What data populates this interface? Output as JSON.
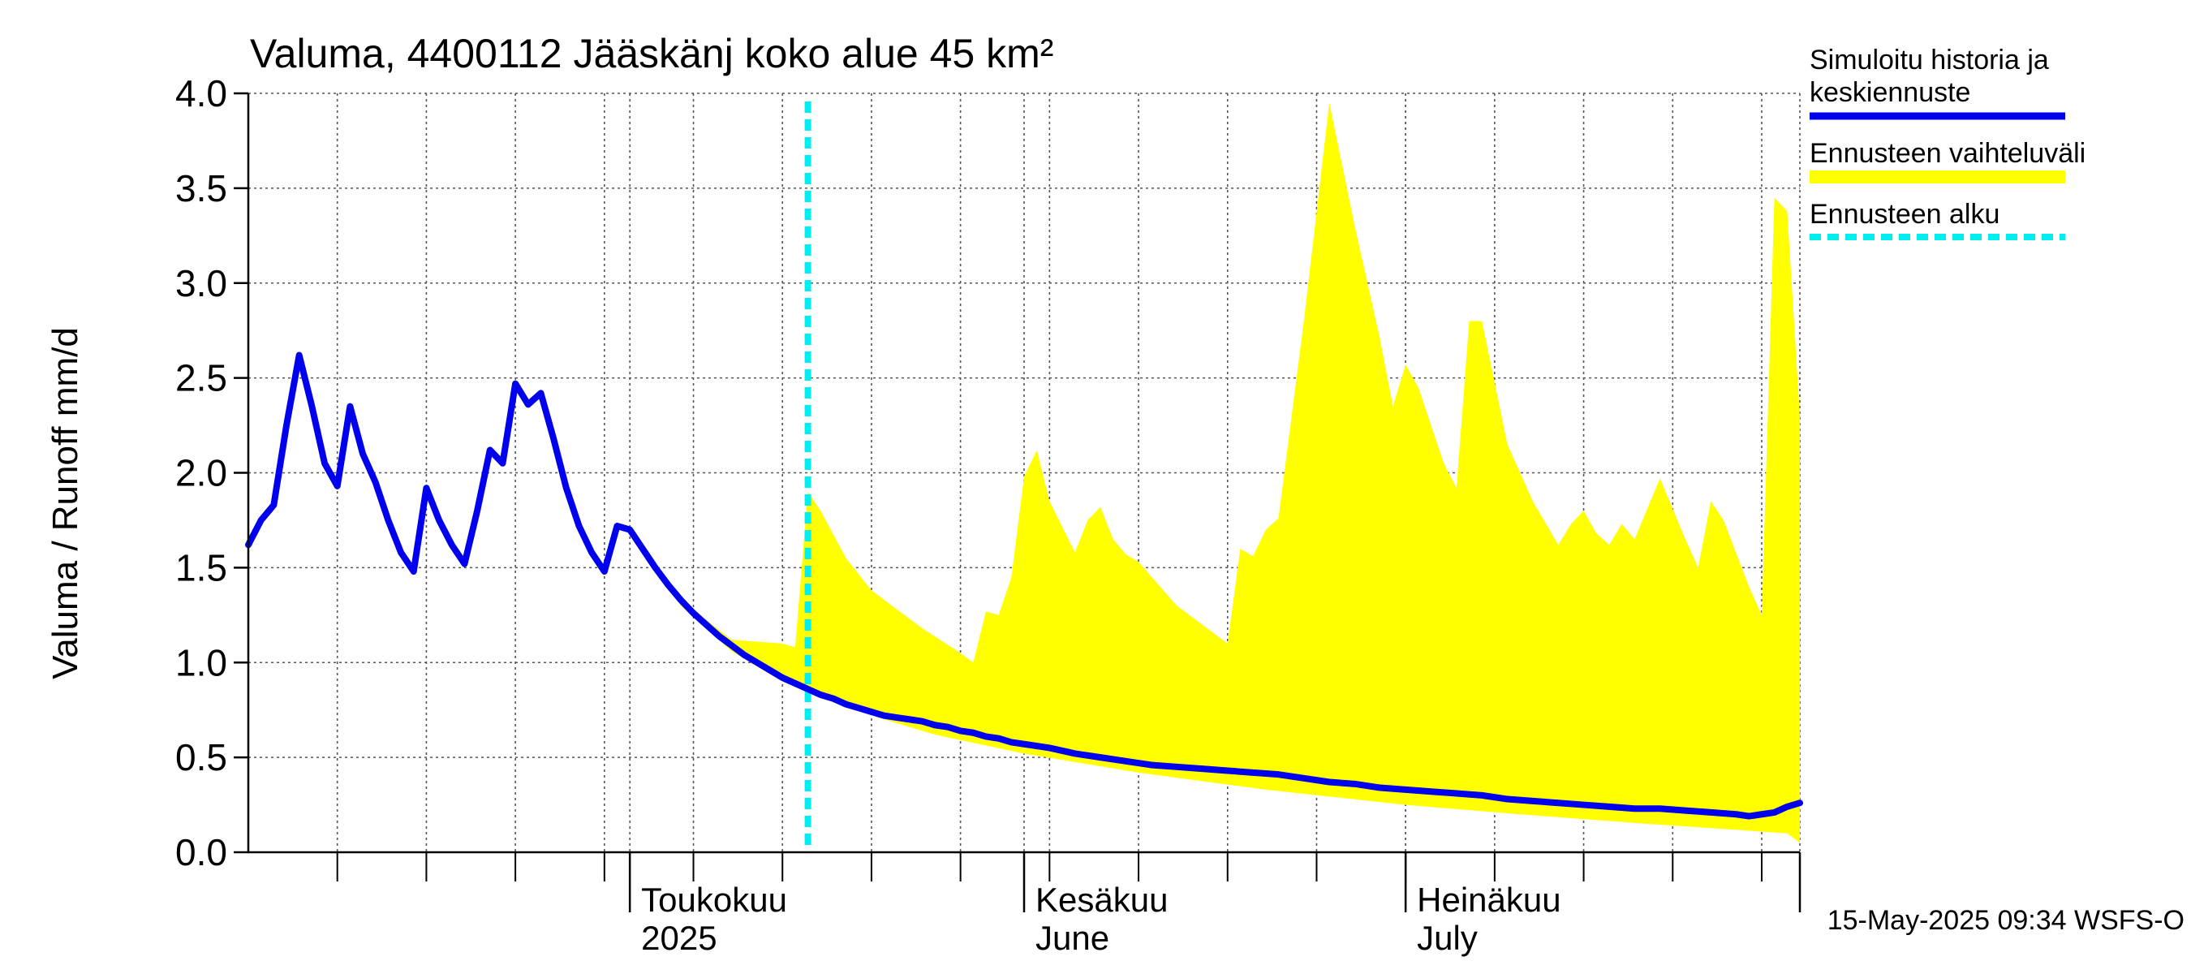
{
  "chart_data": {
    "type": "line",
    "title": "Valuma, 4400112 Jääskänj koko alue 45 km²",
    "ylabel": "Valuma / Runoff    mm/d",
    "ylim": [
      0,
      4
    ],
    "yticks": [
      "0.0",
      "0.5",
      "1.0",
      "1.5",
      "2.0",
      "2.5",
      "3.0",
      "3.5",
      "4.0"
    ],
    "x_domain": [
      "2025-04-01",
      "2025-08-01"
    ],
    "month_labels": [
      {
        "date": "2025-05-01",
        "fi": "Toukokuu",
        "sub": "2025"
      },
      {
        "date": "2025-06-01",
        "fi": "Kesäkuu",
        "sub": "June"
      },
      {
        "date": "2025-07-01",
        "fi": "Heinäkuu",
        "sub": "July"
      }
    ],
    "forecast_start": "2025-05-15",
    "timestamp": "15-May-2025 09:34 WSFS-O",
    "legend": {
      "placement": "top-right (outside plot)",
      "items": [
        {
          "label_lines": [
            "Simuloitu historia ja",
            "keskiennuste"
          ],
          "color": "#0000ee",
          "style": "solid"
        },
        {
          "label_lines": [
            "Ennusteen vaihteluväli"
          ],
          "color": "#ffff00",
          "style": "band"
        },
        {
          "label_lines": [
            "Ennusteen alku"
          ],
          "color": "#00eeee",
          "style": "dashed"
        }
      ]
    },
    "series": [
      {
        "name": "Simuloitu historia ja keskiennuste",
        "color": "#0000ee",
        "points": [
          [
            "2025-04-01",
            1.62
          ],
          [
            "2025-04-02",
            1.75
          ],
          [
            "2025-04-03",
            1.83
          ],
          [
            "2025-04-04",
            2.25
          ],
          [
            "2025-04-05",
            2.62
          ],
          [
            "2025-04-06",
            2.35
          ],
          [
            "2025-04-07",
            2.05
          ],
          [
            "2025-04-08",
            1.93
          ],
          [
            "2025-04-09",
            2.35
          ],
          [
            "2025-04-10",
            2.1
          ],
          [
            "2025-04-11",
            1.95
          ],
          [
            "2025-04-12",
            1.75
          ],
          [
            "2025-04-13",
            1.58
          ],
          [
            "2025-04-14",
            1.48
          ],
          [
            "2025-04-15",
            1.92
          ],
          [
            "2025-04-16",
            1.75
          ],
          [
            "2025-04-17",
            1.62
          ],
          [
            "2025-04-18",
            1.52
          ],
          [
            "2025-04-19",
            1.8
          ],
          [
            "2025-04-20",
            2.12
          ],
          [
            "2025-04-21",
            2.05
          ],
          [
            "2025-04-22",
            2.47
          ],
          [
            "2025-04-23",
            2.36
          ],
          [
            "2025-04-24",
            2.42
          ],
          [
            "2025-04-25",
            2.18
          ],
          [
            "2025-04-26",
            1.92
          ],
          [
            "2025-04-27",
            1.72
          ],
          [
            "2025-04-28",
            1.58
          ],
          [
            "2025-04-29",
            1.48
          ],
          [
            "2025-04-30",
            1.72
          ],
          [
            "2025-05-01",
            1.7
          ],
          [
            "2025-05-02",
            1.6
          ],
          [
            "2025-05-03",
            1.5
          ],
          [
            "2025-05-04",
            1.41
          ],
          [
            "2025-05-05",
            1.33
          ],
          [
            "2025-05-06",
            1.26
          ],
          [
            "2025-05-07",
            1.2
          ],
          [
            "2025-05-08",
            1.14
          ],
          [
            "2025-05-09",
            1.09
          ],
          [
            "2025-05-10",
            1.04
          ],
          [
            "2025-05-11",
            1.0
          ],
          [
            "2025-05-12",
            0.96
          ],
          [
            "2025-05-13",
            0.92
          ],
          [
            "2025-05-14",
            0.89
          ],
          [
            "2025-05-15",
            0.86
          ],
          [
            "2025-05-16",
            0.83
          ],
          [
            "2025-05-17",
            0.81
          ],
          [
            "2025-05-18",
            0.78
          ],
          [
            "2025-05-19",
            0.76
          ],
          [
            "2025-05-20",
            0.74
          ],
          [
            "2025-05-21",
            0.72
          ],
          [
            "2025-05-22",
            0.71
          ],
          [
            "2025-05-23",
            0.7
          ],
          [
            "2025-05-24",
            0.69
          ],
          [
            "2025-05-25",
            0.67
          ],
          [
            "2025-05-26",
            0.66
          ],
          [
            "2025-05-27",
            0.64
          ],
          [
            "2025-05-28",
            0.63
          ],
          [
            "2025-05-29",
            0.61
          ],
          [
            "2025-05-30",
            0.6
          ],
          [
            "2025-05-31",
            0.58
          ],
          [
            "2025-06-01",
            0.57
          ],
          [
            "2025-06-03",
            0.55
          ],
          [
            "2025-06-05",
            0.52
          ],
          [
            "2025-06-07",
            0.5
          ],
          [
            "2025-06-09",
            0.48
          ],
          [
            "2025-06-11",
            0.46
          ],
          [
            "2025-06-13",
            0.45
          ],
          [
            "2025-06-15",
            0.44
          ],
          [
            "2025-06-17",
            0.43
          ],
          [
            "2025-06-19",
            0.42
          ],
          [
            "2025-06-21",
            0.41
          ],
          [
            "2025-06-23",
            0.39
          ],
          [
            "2025-06-25",
            0.37
          ],
          [
            "2025-06-27",
            0.36
          ],
          [
            "2025-06-29",
            0.34
          ],
          [
            "2025-07-01",
            0.33
          ],
          [
            "2025-07-03",
            0.32
          ],
          [
            "2025-07-05",
            0.31
          ],
          [
            "2025-07-07",
            0.3
          ],
          [
            "2025-07-09",
            0.28
          ],
          [
            "2025-07-11",
            0.27
          ],
          [
            "2025-07-13",
            0.26
          ],
          [
            "2025-07-15",
            0.25
          ],
          [
            "2025-07-17",
            0.24
          ],
          [
            "2025-07-19",
            0.23
          ],
          [
            "2025-07-21",
            0.23
          ],
          [
            "2025-07-23",
            0.22
          ],
          [
            "2025-07-25",
            0.21
          ],
          [
            "2025-07-27",
            0.2
          ],
          [
            "2025-07-28",
            0.19
          ],
          [
            "2025-07-29",
            0.2
          ],
          [
            "2025-07-30",
            0.21
          ],
          [
            "2025-07-31",
            0.24
          ],
          [
            "2025-08-01",
            0.26
          ]
        ]
      }
    ],
    "band": {
      "name": "Ennusteen vaihteluväli",
      "color": "#ffff00",
      "upper": [
        [
          "2025-05-01",
          1.7
        ],
        [
          "2025-05-05",
          1.33
        ],
        [
          "2025-05-09",
          1.12
        ],
        [
          "2025-05-13",
          1.1
        ],
        [
          "2025-05-14",
          1.08
        ],
        [
          "2025-05-15",
          1.9
        ],
        [
          "2025-05-16",
          1.8
        ],
        [
          "2025-05-18",
          1.55
        ],
        [
          "2025-05-20",
          1.38
        ],
        [
          "2025-05-24",
          1.18
        ],
        [
          "2025-05-27",
          1.05
        ],
        [
          "2025-05-28",
          1.0
        ],
        [
          "2025-05-29",
          1.27
        ],
        [
          "2025-05-30",
          1.25
        ],
        [
          "2025-05-31",
          1.45
        ],
        [
          "2025-06-01",
          1.98
        ],
        [
          "2025-06-02",
          2.12
        ],
        [
          "2025-06-03",
          1.85
        ],
        [
          "2025-06-05",
          1.58
        ],
        [
          "2025-06-06",
          1.75
        ],
        [
          "2025-06-07",
          1.82
        ],
        [
          "2025-06-08",
          1.65
        ],
        [
          "2025-06-09",
          1.57
        ],
        [
          "2025-06-10",
          1.53
        ],
        [
          "2025-06-13",
          1.3
        ],
        [
          "2025-06-16",
          1.15
        ],
        [
          "2025-06-17",
          1.1
        ],
        [
          "2025-06-18",
          1.6
        ],
        [
          "2025-06-19",
          1.56
        ],
        [
          "2025-06-20",
          1.7
        ],
        [
          "2025-06-21",
          1.76
        ],
        [
          "2025-06-23",
          2.8
        ],
        [
          "2025-06-25",
          3.95
        ],
        [
          "2025-06-27",
          3.3
        ],
        [
          "2025-06-29",
          2.7
        ],
        [
          "2025-06-30",
          2.35
        ],
        [
          "2025-07-01",
          2.57
        ],
        [
          "2025-07-02",
          2.45
        ],
        [
          "2025-07-04",
          2.05
        ],
        [
          "2025-07-05",
          1.92
        ],
        [
          "2025-07-06",
          2.8
        ],
        [
          "2025-07-07",
          2.8
        ],
        [
          "2025-07-09",
          2.15
        ],
        [
          "2025-07-11",
          1.85
        ],
        [
          "2025-07-13",
          1.62
        ],
        [
          "2025-07-14",
          1.73
        ],
        [
          "2025-07-15",
          1.8
        ],
        [
          "2025-07-16",
          1.68
        ],
        [
          "2025-07-17",
          1.62
        ],
        [
          "2025-07-18",
          1.73
        ],
        [
          "2025-07-19",
          1.65
        ],
        [
          "2025-07-21",
          1.97
        ],
        [
          "2025-07-23",
          1.65
        ],
        [
          "2025-07-24",
          1.5
        ],
        [
          "2025-07-25",
          1.85
        ],
        [
          "2025-07-26",
          1.75
        ],
        [
          "2025-07-28",
          1.4
        ],
        [
          "2025-07-29",
          1.25
        ],
        [
          "2025-07-30",
          3.45
        ],
        [
          "2025-07-31",
          3.38
        ],
        [
          "2025-08-02",
          2.3
        ],
        [
          "2025-08-04",
          1.75
        ]
      ],
      "lower": [
        [
          "2025-05-01",
          1.7
        ],
        [
          "2025-05-05",
          1.3
        ],
        [
          "2025-05-09",
          1.06
        ],
        [
          "2025-05-13",
          0.9
        ],
        [
          "2025-05-17",
          0.79
        ],
        [
          "2025-05-21",
          0.7
        ],
        [
          "2025-05-25",
          0.62
        ],
        [
          "2025-06-01",
          0.52
        ],
        [
          "2025-06-10",
          0.42
        ],
        [
          "2025-06-20",
          0.33
        ],
        [
          "2025-07-01",
          0.25
        ],
        [
          "2025-07-10",
          0.2
        ],
        [
          "2025-07-20",
          0.15
        ],
        [
          "2025-07-31",
          0.1
        ],
        [
          "2025-08-04",
          0.05
        ]
      ]
    }
  }
}
